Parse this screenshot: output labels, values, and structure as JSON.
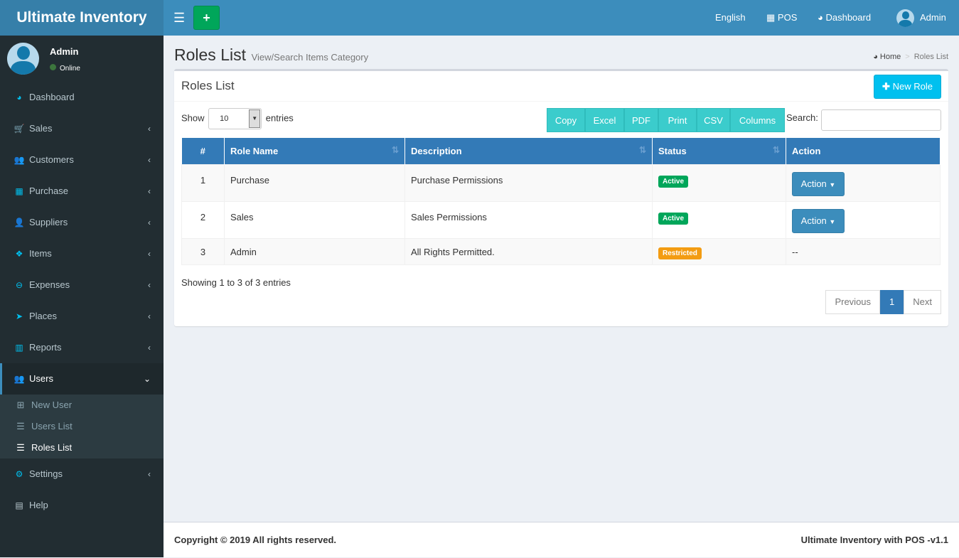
{
  "app": {
    "title": "Ultimate Inventory"
  },
  "topbar": {
    "language": "English",
    "pos": "POS",
    "dashboard": "Dashboard",
    "user": "Admin"
  },
  "sidebar": {
    "user": {
      "name": "Admin",
      "status": "Online"
    },
    "items": [
      {
        "label": "Dashboard",
        "icon": "dashboard-icon",
        "glyph": "◕"
      },
      {
        "label": "Sales",
        "icon": "cart-icon",
        "glyph": "🛒"
      },
      {
        "label": "Customers",
        "icon": "users-icon",
        "glyph": "👥"
      },
      {
        "label": "Purchase",
        "icon": "grid-icon",
        "glyph": "▦"
      },
      {
        "label": "Suppliers",
        "icon": "user-plus-icon",
        "glyph": "👤"
      },
      {
        "label": "Items",
        "icon": "cubes-icon",
        "glyph": "❖"
      },
      {
        "label": "Expenses",
        "icon": "minus-circle-icon",
        "glyph": "⊖"
      },
      {
        "label": "Places",
        "icon": "paper-plane-icon",
        "glyph": "➤"
      },
      {
        "label": "Reports",
        "icon": "bar-chart-icon",
        "glyph": "▥"
      },
      {
        "label": "Users",
        "icon": "users-icon",
        "glyph": "👥"
      },
      {
        "label": "Settings",
        "icon": "gears-icon",
        "glyph": "⚙"
      },
      {
        "label": "Help",
        "icon": "book-icon",
        "glyph": "▤"
      }
    ],
    "submenu": [
      {
        "label": "New User",
        "glyph": "⊞"
      },
      {
        "label": "Users List",
        "glyph": "☰"
      },
      {
        "label": "Roles List",
        "glyph": "☰"
      }
    ]
  },
  "page": {
    "title": "Roles List",
    "subtitle": "View/Search Items Category",
    "breadcrumb": [
      "Home",
      "Roles List"
    ]
  },
  "box": {
    "title": "Roles List",
    "new_button": "New Role",
    "show": "Show",
    "entries_value": "10",
    "entries": "entries",
    "export_buttons": [
      "Copy",
      "Excel",
      "PDF",
      "Print",
      "CSV",
      "Columns"
    ],
    "search_label": "Search:",
    "search_value": "",
    "columns": [
      "#",
      "Role Name",
      "Description",
      "Status",
      "Action"
    ],
    "rows": [
      {
        "num": "1",
        "name": "Purchase",
        "desc": "Purchase Permissions",
        "status": "Active",
        "status_color": "#00a65a",
        "action": "Action"
      },
      {
        "num": "2",
        "name": "Sales",
        "desc": "Sales Permissions",
        "status": "Active",
        "status_color": "#00a65a",
        "action": "Action"
      },
      {
        "num": "3",
        "name": "Admin",
        "desc": "All Rights Permitted.",
        "status": "Restricted",
        "status_color": "#f39c12",
        "action": "--"
      }
    ],
    "info": "Showing 1 to 3 of 3 entries",
    "pager": {
      "prev": "Previous",
      "page": "1",
      "next": "Next"
    }
  },
  "footer": {
    "left": "Copyright © 2019 All rights reserved.",
    "right": "Ultimate Inventory with POS -v1.1"
  }
}
